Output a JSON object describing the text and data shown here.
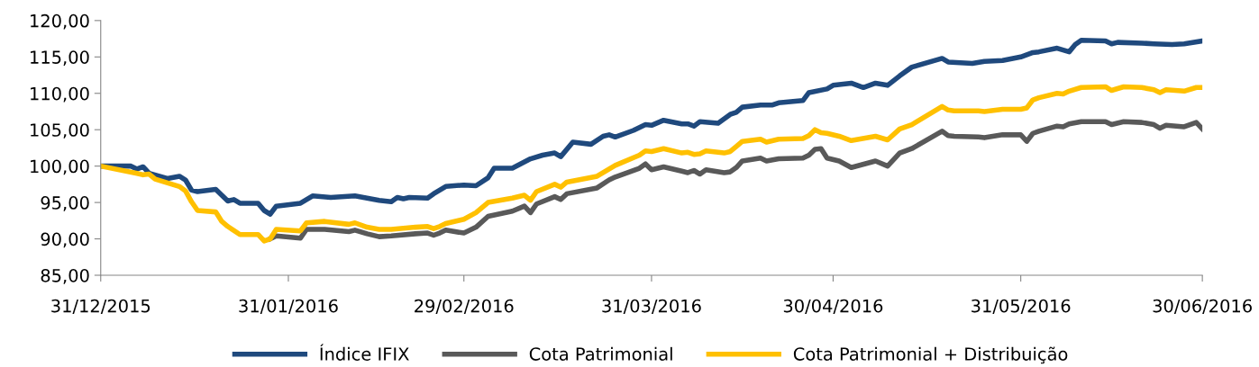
{
  "chart_data": {
    "type": "line",
    "xlim": [
      "2015-12-31",
      "2016-06-30"
    ],
    "xticks": [
      {
        "value": "2015-12-31",
        "label": "31/12/2015"
      },
      {
        "value": "2016-01-31",
        "label": "31/01/2016"
      },
      {
        "value": "2016-02-29",
        "label": "29/02/2016"
      },
      {
        "value": "2016-03-31",
        "label": "31/03/2016"
      },
      {
        "value": "2016-04-30",
        "label": "30/04/2016"
      },
      {
        "value": "2016-05-31",
        "label": "31/05/2016"
      },
      {
        "value": "2016-06-30",
        "label": "30/06/2016"
      }
    ],
    "ylim": [
      85,
      120
    ],
    "yticks": [
      {
        "value": 85,
        "label": "85,00"
      },
      {
        "value": 90,
        "label": "90,00"
      },
      {
        "value": 95,
        "label": "95,00"
      },
      {
        "value": 100,
        "label": "100,00"
      },
      {
        "value": 105,
        "label": "105,00"
      },
      {
        "value": 110,
        "label": "110,00"
      },
      {
        "value": 115,
        "label": "115,00"
      },
      {
        "value": 120,
        "label": "120,00"
      }
    ],
    "grid": false,
    "legend": "bottom",
    "marker": "none",
    "line_style": "solid",
    "series": [
      {
        "name": "Índice IFIX",
        "color": "#1f497d",
        "x": [
          "2015-12-31",
          "2016-01-05",
          "2016-01-06",
          "2016-01-07",
          "2016-01-08",
          "2016-01-11",
          "2016-01-13",
          "2016-01-14",
          "2016-01-15",
          "2016-01-16",
          "2016-01-19",
          "2016-01-20",
          "2016-01-21",
          "2016-01-22",
          "2016-01-23",
          "2016-01-26",
          "2016-01-27",
          "2016-01-28",
          "2016-01-29",
          "2016-02-02",
          "2016-02-04",
          "2016-02-07",
          "2016-02-11",
          "2016-02-15",
          "2016-02-17",
          "2016-02-18",
          "2016-02-19",
          "2016-02-20",
          "2016-02-23",
          "2016-02-24",
          "2016-02-26",
          "2016-02-29",
          "2016-03-02",
          "2016-03-04",
          "2016-03-05",
          "2016-03-08",
          "2016-03-11",
          "2016-03-13",
          "2016-03-15",
          "2016-03-16",
          "2016-03-18",
          "2016-03-21",
          "2016-03-23",
          "2016-03-24",
          "2016-03-25",
          "2016-03-28",
          "2016-03-30",
          "2016-03-31",
          "2016-04-02",
          "2016-04-05",
          "2016-04-06",
          "2016-04-07",
          "2016-04-08",
          "2016-04-11",
          "2016-04-13",
          "2016-04-14",
          "2016-04-15",
          "2016-04-18",
          "2016-04-20",
          "2016-04-21",
          "2016-04-25",
          "2016-04-26",
          "2016-04-29",
          "2016-04-30",
          "2016-05-03",
          "2016-05-05",
          "2016-05-07",
          "2016-05-09",
          "2016-05-11",
          "2016-05-13",
          "2016-05-18",
          "2016-05-19",
          "2016-05-23",
          "2016-05-25",
          "2016-05-28",
          "2016-05-31",
          "2016-06-02",
          "2016-06-03",
          "2016-06-06",
          "2016-06-08",
          "2016-06-09",
          "2016-06-10",
          "2016-06-14",
          "2016-06-15",
          "2016-06-16",
          "2016-06-20",
          "2016-06-22",
          "2016-06-25",
          "2016-06-27",
          "2016-06-30"
        ],
        "values": [
          100,
          100,
          99.6,
          99.9,
          99,
          98.3,
          98.6,
          98.1,
          96.7,
          96.5,
          96.8,
          96,
          95.2,
          95.4,
          94.9,
          94.9,
          93.9,
          93.4,
          94.5,
          94.9,
          95.9,
          95.7,
          95.9,
          95.3,
          95.1,
          95.7,
          95.5,
          95.7,
          95.6,
          96.2,
          97.2,
          97.4,
          97.3,
          98.4,
          99.7,
          99.7,
          101,
          101.5,
          101.8,
          101.3,
          103.3,
          103,
          104.1,
          104.3,
          104,
          104.9,
          105.7,
          105.6,
          106.3,
          105.8,
          105.8,
          105.5,
          106.1,
          105.9,
          107.1,
          107.4,
          108.1,
          108.4,
          108.4,
          108.7,
          109,
          110.1,
          110.6,
          111.1,
          111.4,
          110.8,
          111.4,
          111.1,
          112.4,
          113.6,
          114.8,
          114.3,
          114.1,
          114.4,
          114.5,
          115,
          115.6,
          115.7,
          116.2,
          115.7,
          116.7,
          117.3,
          117.2,
          116.8,
          117,
          116.9,
          116.8,
          116.7,
          116.8,
          117.2
        ]
      },
      {
        "name": "Cota Patrimonial",
        "color": "#595959",
        "x": [
          "2016-01-28",
          "2016-01-29",
          "2016-02-02",
          "2016-02-03",
          "2016-02-06",
          "2016-02-10",
          "2016-02-11",
          "2016-02-13",
          "2016-02-15",
          "2016-02-17",
          "2016-02-21",
          "2016-02-23",
          "2016-02-24",
          "2016-02-25",
          "2016-02-26",
          "2016-02-29",
          "2016-03-02",
          "2016-03-04",
          "2016-03-08",
          "2016-03-10",
          "2016-03-11",
          "2016-03-12",
          "2016-03-15",
          "2016-03-16",
          "2016-03-17",
          "2016-03-22",
          "2016-03-24",
          "2016-03-25",
          "2016-03-29",
          "2016-03-30",
          "2016-03-31",
          "2016-04-02",
          "2016-04-05",
          "2016-04-06",
          "2016-04-07",
          "2016-04-08",
          "2016-04-09",
          "2016-04-12",
          "2016-04-13",
          "2016-04-14",
          "2016-04-15",
          "2016-04-18",
          "2016-04-19",
          "2016-04-21",
          "2016-04-25",
          "2016-04-26",
          "2016-04-27",
          "2016-04-28",
          "2016-04-29",
          "2016-05-01",
          "2016-05-03",
          "2016-05-07",
          "2016-05-09",
          "2016-05-11",
          "2016-05-13",
          "2016-05-18",
          "2016-05-19",
          "2016-05-20",
          "2016-05-24",
          "2016-05-25",
          "2016-05-28",
          "2016-05-31",
          "2016-06-01",
          "2016-06-02",
          "2016-06-03",
          "2016-06-06",
          "2016-06-07",
          "2016-06-08",
          "2016-06-10",
          "2016-06-14",
          "2016-06-15",
          "2016-06-17",
          "2016-06-20",
          "2016-06-22",
          "2016-06-23",
          "2016-06-24",
          "2016-06-27",
          "2016-06-29",
          "2016-06-30"
        ],
        "values": [
          90.0,
          90.4,
          90.1,
          91.3,
          91.3,
          91.0,
          91.2,
          90.7,
          90.3,
          90.4,
          90.7,
          90.8,
          90.5,
          90.8,
          91.2,
          90.8,
          91.6,
          93.1,
          93.8,
          94.5,
          93.6,
          94.8,
          95.8,
          95.4,
          96.2,
          97.0,
          98.1,
          98.5,
          99.7,
          100.3,
          99.5,
          99.9,
          99.3,
          99.1,
          99.4,
          98.9,
          99.5,
          99.1,
          99.2,
          99.8,
          100.7,
          101.1,
          100.7,
          101.0,
          101.1,
          101.5,
          102.3,
          102.4,
          101.1,
          100.7,
          99.8,
          100.7,
          100.0,
          101.8,
          102.4,
          104.8,
          104.2,
          104.1,
          104.0,
          103.9,
          104.3,
          104.3,
          103.4,
          104.5,
          104.8,
          105.5,
          105.4,
          105.8,
          106.1,
          106.1,
          105.7,
          106.1,
          106.0,
          105.7,
          105.2,
          105.6,
          105.4,
          106.0,
          105.1
        ]
      },
      {
        "name": "Cota Patrimonial + Distribuição",
        "color": "#ffc000",
        "x": [
          "2015-12-31",
          "2016-01-06",
          "2016-01-07",
          "2016-01-08",
          "2016-01-09",
          "2016-01-13",
          "2016-01-14",
          "2016-01-15",
          "2016-01-16",
          "2016-01-19",
          "2016-01-20",
          "2016-01-21",
          "2016-01-23",
          "2016-01-26",
          "2016-01-27",
          "2016-01-28",
          "2016-01-29",
          "2016-02-02",
          "2016-02-03",
          "2016-02-06",
          "2016-02-10",
          "2016-02-11",
          "2016-02-13",
          "2016-02-15",
          "2016-02-17",
          "2016-02-21",
          "2016-02-23",
          "2016-02-24",
          "2016-02-25",
          "2016-02-26",
          "2016-02-29",
          "2016-03-02",
          "2016-03-04",
          "2016-03-08",
          "2016-03-10",
          "2016-03-11",
          "2016-03-12",
          "2016-03-15",
          "2016-03-16",
          "2016-03-17",
          "2016-03-22",
          "2016-03-24",
          "2016-03-25",
          "2016-03-29",
          "2016-03-30",
          "2016-03-31",
          "2016-04-02",
          "2016-04-05",
          "2016-04-06",
          "2016-04-07",
          "2016-04-08",
          "2016-04-09",
          "2016-04-12",
          "2016-04-13",
          "2016-04-14",
          "2016-04-15",
          "2016-04-18",
          "2016-04-19",
          "2016-04-21",
          "2016-04-25",
          "2016-04-26",
          "2016-04-27",
          "2016-04-28",
          "2016-04-29",
          "2016-05-01",
          "2016-05-03",
          "2016-05-07",
          "2016-05-09",
          "2016-05-11",
          "2016-05-13",
          "2016-05-18",
          "2016-05-19",
          "2016-05-20",
          "2016-05-24",
          "2016-05-25",
          "2016-05-28",
          "2016-05-31",
          "2016-06-01",
          "2016-06-02",
          "2016-06-03",
          "2016-06-06",
          "2016-06-07",
          "2016-06-08",
          "2016-06-10",
          "2016-06-14",
          "2016-06-15",
          "2016-06-17",
          "2016-06-20",
          "2016-06-22",
          "2016-06-23",
          "2016-06-24",
          "2016-06-27",
          "2016-06-29",
          "2016-06-30"
        ],
        "values": [
          100,
          99.0,
          98.8,
          98.9,
          98.2,
          97.2,
          96.6,
          95.1,
          93.9,
          93.7,
          92.4,
          91.7,
          90.6,
          90.6,
          89.7,
          90.0,
          91.3,
          91.1,
          92.2,
          92.4,
          92.0,
          92.2,
          91.6,
          91.3,
          91.3,
          91.6,
          91.7,
          91.4,
          91.7,
          92.1,
          92.7,
          93.6,
          95.0,
          95.6,
          96.0,
          95.3,
          96.5,
          97.5,
          97.1,
          97.8,
          98.6,
          99.6,
          100.1,
          101.5,
          102.1,
          102.0,
          102.4,
          101.8,
          101.9,
          101.6,
          101.7,
          102.1,
          101.8,
          102.0,
          102.7,
          103.4,
          103.7,
          103.3,
          103.7,
          103.8,
          104.2,
          105.0,
          104.6,
          104.5,
          104.1,
          103.5,
          104.1,
          103.6,
          105.1,
          105.7,
          108.2,
          107.7,
          107.6,
          107.6,
          107.5,
          107.8,
          107.8,
          108.0,
          109.1,
          109.4,
          110.0,
          109.9,
          110.3,
          110.8,
          110.9,
          110.4,
          110.9,
          110.8,
          110.5,
          110.1,
          110.5,
          110.3,
          110.8,
          110.8
        ]
      }
    ]
  }
}
